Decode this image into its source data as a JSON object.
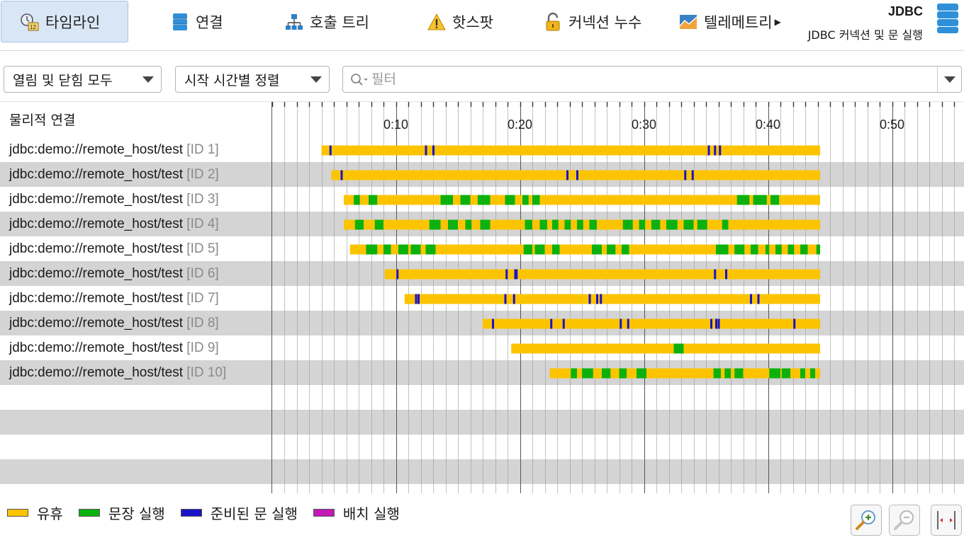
{
  "toolbar": {
    "tabs": [
      {
        "label": "타임라인",
        "icon": "timeline-icon",
        "active": true
      },
      {
        "label": "연결",
        "icon": "database-icon"
      },
      {
        "label": "호출 트리",
        "icon": "call-tree-icon"
      },
      {
        "label": "핫스팟",
        "icon": "warning-icon"
      },
      {
        "label": "커넥션 누수",
        "icon": "lock-open-icon"
      },
      {
        "label": "텔레메트리",
        "icon": "telemetry-icon"
      }
    ],
    "title": "JDBC",
    "subtitle": "JDBC 커넥션 및 문 실행"
  },
  "filters": {
    "open_close": "열림 및 닫힘 모두",
    "sort": "시작 시간별 정렬",
    "search_placeholder": "필터"
  },
  "list": {
    "header": "물리적 연결",
    "connections": [
      {
        "url": "jdbc:demo://remote_host/test",
        "id": "[ID 1]"
      },
      {
        "url": "jdbc:demo://remote_host/test",
        "id": "[ID 2]"
      },
      {
        "url": "jdbc:demo://remote_host/test",
        "id": "[ID 3]"
      },
      {
        "url": "jdbc:demo://remote_host/test",
        "id": "[ID 4]"
      },
      {
        "url": "jdbc:demo://remote_host/test",
        "id": "[ID 5]"
      },
      {
        "url": "jdbc:demo://remote_host/test",
        "id": "[ID 6]"
      },
      {
        "url": "jdbc:demo://remote_host/test",
        "id": "[ID 7]"
      },
      {
        "url": "jdbc:demo://remote_host/test",
        "id": "[ID 8]"
      },
      {
        "url": "jdbc:demo://remote_host/test",
        "id": "[ID 9]"
      },
      {
        "url": "jdbc:demo://remote_host/test",
        "id": "[ID 10]"
      }
    ]
  },
  "timeline": {
    "axis_labels": [
      "0:10",
      "0:20",
      "0:30",
      "0:40",
      "0:50"
    ],
    "colors": {
      "idle": "#fcc400",
      "statement": "#0db10d",
      "prepared": "#1a12c8",
      "batch": "#c318b4",
      "grid": "#888888",
      "major_grid": "#555555"
    },
    "rows": [
      {
        "start": 4.0,
        "end": 44.2,
        "green": [],
        "blue": [
          4.7,
          12.4,
          13.0,
          35.2,
          35.7,
          36.1
        ]
      },
      {
        "start": 4.8,
        "end": 44.2,
        "green": [],
        "blue": [
          5.6,
          23.8,
          24.6,
          33.3,
          33.9
        ]
      },
      {
        "start": 5.8,
        "end": 44.2,
        "green": [
          [
            6.6,
            7.1
          ],
          [
            7.8,
            8.5
          ],
          [
            13.6,
            14.6
          ],
          [
            15.2,
            16.0
          ],
          [
            16.6,
            17.6
          ],
          [
            18.8,
            19.6
          ],
          [
            20.2,
            20.7
          ],
          [
            21.0,
            21.6
          ],
          [
            37.5,
            38.5
          ],
          [
            38.8,
            39.9
          ],
          [
            40.2,
            40.9
          ]
        ],
        "blue": []
      },
      {
        "start": 5.8,
        "end": 44.2,
        "green": [
          [
            6.7,
            7.4
          ],
          [
            8.3,
            9.0
          ],
          [
            12.7,
            13.6
          ],
          [
            14.2,
            15.0
          ],
          [
            15.6,
            16.1
          ],
          [
            16.8,
            17.6
          ],
          [
            20.4,
            21.0
          ],
          [
            21.6,
            22.2
          ],
          [
            22.6,
            23.1
          ],
          [
            23.6,
            24.1
          ],
          [
            24.6,
            25.1
          ],
          [
            25.6,
            26.2
          ],
          [
            28.3,
            29.1
          ],
          [
            29.6,
            30.1
          ],
          [
            30.6,
            31.3
          ],
          [
            31.8,
            32.7
          ],
          [
            33.2,
            34.0
          ],
          [
            34.3,
            35.1
          ],
          [
            36.3,
            36.8
          ]
        ],
        "blue": []
      },
      {
        "start": 6.3,
        "end": 44.2,
        "green": [
          [
            7.6,
            8.5
          ],
          [
            9.0,
            9.6
          ],
          [
            10.2,
            11.0
          ],
          [
            11.2,
            12.0
          ],
          [
            12.4,
            13.2
          ],
          [
            20.3,
            21.0
          ],
          [
            21.2,
            22.0
          ],
          [
            22.6,
            23.2
          ],
          [
            25.8,
            26.6
          ],
          [
            27.0,
            27.7
          ],
          [
            28.2,
            28.8
          ],
          [
            35.8,
            36.8
          ],
          [
            37.3,
            38.1
          ],
          [
            38.6,
            39.2
          ],
          [
            39.8,
            40.1
          ],
          [
            40.6,
            41.1
          ],
          [
            41.6,
            42.1
          ],
          [
            42.6,
            43.2
          ],
          [
            43.9,
            44.2
          ]
        ],
        "blue": []
      },
      {
        "start": 9.1,
        "end": 44.2,
        "green": [],
        "blue": [
          10.1,
          18.9,
          19.6,
          19.7,
          35.7,
          36.6
        ]
      },
      {
        "start": 10.7,
        "end": 44.2,
        "green": [],
        "blue": [
          11.6,
          11.8,
          18.8,
          19.5,
          25.6,
          26.2,
          26.5,
          38.6,
          39.2
        ]
      },
      {
        "start": 17.0,
        "end": 44.2,
        "green": [],
        "blue": [
          17.8,
          22.5,
          23.5,
          28.1,
          28.7,
          35.4,
          35.8,
          36.0,
          42.1
        ]
      },
      {
        "start": 19.3,
        "end": 44.2,
        "green": [
          [
            32.4,
            33.2
          ]
        ],
        "blue": []
      },
      {
        "start": 22.4,
        "end": 44.2,
        "green": [
          [
            24.1,
            24.6
          ],
          [
            25.0,
            25.9
          ],
          [
            26.6,
            27.3
          ],
          [
            28.0,
            28.6
          ],
          [
            29.4,
            30.2
          ],
          [
            35.6,
            36.2
          ],
          [
            36.5,
            37.0
          ],
          [
            37.3,
            38.0
          ],
          [
            40.1,
            41.0
          ],
          [
            41.1,
            41.8
          ],
          [
            42.6,
            43.0
          ],
          [
            43.4,
            43.8
          ]
        ],
        "blue": []
      }
    ]
  },
  "legend": [
    {
      "label": "유휴",
      "color": "#fcc400"
    },
    {
      "label": "문장 실행",
      "color": "#0db10d"
    },
    {
      "label": "준비된 문 실행",
      "color": "#1a12c8"
    },
    {
      "label": "배치 실행",
      "color": "#c318b4"
    }
  ],
  "zoom": {
    "in": "zoom-in-icon",
    "out": "zoom-out-icon",
    "fit": "fit-width-icon"
  }
}
